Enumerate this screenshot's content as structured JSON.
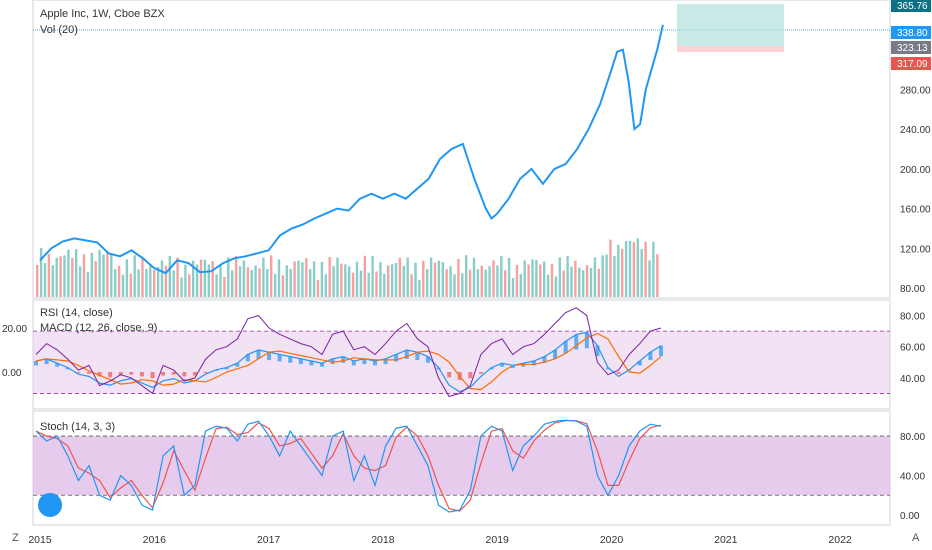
{
  "legend": {
    "title": "Apple Inc, 1W, Cboe BZX",
    "vol": "Vol (20)",
    "rsi": "RSI (14, close)",
    "macd": "MACD (12, 26, close, 9)",
    "stoch": "Stoch (14, 3, 3)"
  },
  "corner": {
    "left": "Z",
    "right": "A"
  },
  "colors": {
    "price": "#2196f3",
    "up": "#26a69a",
    "down": "#ef5350",
    "rsi": "#7b1fa2",
    "macd": "#2196f3",
    "signal": "#ff6d00",
    "stochK": "#2196f3",
    "stochD": "#ef5350",
    "band": "#e1bee7"
  },
  "price_badges": [
    {
      "label": "365.76",
      "color": "#0b7285"
    },
    {
      "label": "338.80",
      "color": "#2196f3"
    },
    {
      "label": "323.13",
      "color": "#787b86"
    },
    {
      "label": "317.09",
      "color": "#ef5350"
    }
  ],
  "chart_data": [
    {
      "type": "line",
      "title": "Apple Inc, 1W, Cboe BZX",
      "x_ticks": [
        "2015",
        "2016",
        "2017",
        "2018",
        "2019",
        "2020",
        "2021",
        "2022"
      ],
      "y_ticks": [
        "80.00",
        "120.00",
        "160.00",
        "200.00",
        "240.00",
        "280.00"
      ],
      "ylim": [
        70,
        370
      ],
      "series": [
        {
          "name": "Apple Inc",
          "x": [
            2015.0,
            2015.1,
            2015.2,
            2015.3,
            2015.4,
            2015.5,
            2015.6,
            2015.7,
            2015.8,
            2015.9,
            2016.0,
            2016.1,
            2016.2,
            2016.3,
            2016.4,
            2016.5,
            2016.6,
            2016.7,
            2016.8,
            2016.9,
            2017.0,
            2017.1,
            2017.2,
            2017.3,
            2017.4,
            2017.5,
            2017.6,
            2017.7,
            2017.8,
            2017.9,
            2018.0,
            2018.1,
            2018.2,
            2018.3,
            2018.4,
            2018.5,
            2018.6,
            2018.7,
            2018.8,
            2018.9,
            2018.95,
            2019.0,
            2019.1,
            2019.2,
            2019.3,
            2019.4,
            2019.5,
            2019.6,
            2019.7,
            2019.8,
            2019.9,
            2020.0,
            2020.05,
            2020.1,
            2020.15,
            2020.2,
            2020.25,
            2020.3,
            2020.35,
            2020.4,
            2020.45
          ],
          "values": [
            108,
            120,
            127,
            130,
            128,
            126,
            115,
            112,
            118,
            110,
            100,
            95,
            108,
            105,
            96,
            97,
            105,
            110,
            112,
            115,
            118,
            133,
            140,
            144,
            150,
            155,
            160,
            158,
            170,
            175,
            170,
            175,
            170,
            180,
            190,
            210,
            220,
            225,
            190,
            160,
            150,
            155,
            170,
            190,
            200,
            185,
            200,
            205,
            220,
            240,
            265,
            300,
            318,
            320,
            288,
            240,
            245,
            280,
            300,
            320,
            345
          ]
        }
      ]
    },
    {
      "type": "line",
      "title": "RSI (14, close) / MACD (12, 26, close, 9)",
      "y_ticks_left": [
        "20.00",
        "0.00"
      ],
      "y_ticks_right": [
        "80.00",
        "60.00",
        "40.00"
      ],
      "rsi_band": [
        30,
        70
      ],
      "series": [
        {
          "name": "RSI (14, close)",
          "values": [
            55,
            62,
            58,
            52,
            45,
            48,
            35,
            38,
            42,
            40,
            35,
            30,
            48,
            45,
            38,
            40,
            52,
            58,
            60,
            65,
            78,
            80,
            72,
            68,
            65,
            62,
            60,
            55,
            68,
            70,
            58,
            60,
            55,
            62,
            70,
            75,
            65,
            60,
            40,
            28,
            30,
            35,
            55,
            62,
            65,
            55,
            60,
            62,
            68,
            75,
            82,
            85,
            80,
            50,
            42,
            45,
            55,
            62,
            70,
            72
          ]
        },
        {
          "name": "MACD (12, 26, close, 9)",
          "values": [
            5,
            6,
            4,
            2,
            -1,
            -2,
            -5,
            -6,
            -4,
            -3,
            -5,
            -7,
            -4,
            -3,
            -5,
            -4,
            -1,
            1,
            2,
            4,
            8,
            10,
            9,
            8,
            7,
            6,
            5,
            4,
            6,
            7,
            5,
            6,
            5,
            6,
            8,
            10,
            9,
            7,
            2,
            -6,
            -9,
            -7,
            -2,
            2,
            4,
            3,
            4,
            5,
            7,
            10,
            14,
            17,
            18,
            12,
            2,
            -2,
            1,
            5,
            9,
            12
          ]
        }
      ]
    },
    {
      "type": "line",
      "title": "Stoch (14, 3, 3)",
      "y_ticks": [
        "80.00",
        "40.00",
        "0.00"
      ],
      "band": [
        20,
        80
      ],
      "series": [
        {
          "name": "Stoch (14, 3, 3)",
          "values": [
            85,
            75,
            80,
            60,
            35,
            50,
            20,
            15,
            40,
            30,
            10,
            5,
            60,
            70,
            20,
            30,
            85,
            90,
            88,
            75,
            92,
            95,
            80,
            60,
            85,
            70,
            55,
            40,
            80,
            85,
            35,
            60,
            30,
            70,
            88,
            90,
            70,
            50,
            10,
            3,
            5,
            25,
            80,
            90,
            85,
            45,
            70,
            80,
            92,
            95,
            96,
            95,
            90,
            40,
            20,
            40,
            70,
            85,
            92,
            90
          ]
        }
      ]
    }
  ]
}
